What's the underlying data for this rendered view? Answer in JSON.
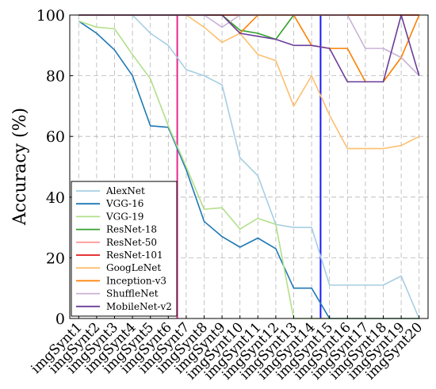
{
  "chart_data": {
    "type": "line",
    "title": "",
    "xlabel": "",
    "ylabel": "Accuracy (%)",
    "ylim": [
      0,
      100
    ],
    "yticks": [
      0,
      20,
      40,
      60,
      80,
      100
    ],
    "grid": true,
    "legend_position": "bottom-left",
    "categories": [
      "imgSynt1",
      "imgSynt2",
      "imgSynt3",
      "imgSynt4",
      "imgSynt5",
      "imgSynt6",
      "imgSynt7",
      "imgSynt8",
      "imgSynt9",
      "imgSynt10",
      "imgSynt11",
      "imgSynt12",
      "imgSynt13",
      "imgSynt14",
      "imgSynt15",
      "imgSynt16",
      "imgSynt17",
      "imgSynt18",
      "imgSynt19",
      "imgSynt20"
    ],
    "series": [
      {
        "name": "AlexNet",
        "color": "#a6cee3",
        "values": [
          100,
          100,
          100,
          100,
          94,
          90,
          82,
          80,
          77,
          53,
          47,
          31,
          30,
          30,
          11,
          11,
          11,
          11,
          14,
          0
        ]
      },
      {
        "name": "VGG-16",
        "color": "#1f78b4",
        "values": [
          98,
          94,
          88.5,
          80,
          63.5,
          63,
          49,
          32,
          27,
          23.5,
          26.5,
          23,
          10,
          10,
          0,
          0,
          0,
          0,
          0,
          0
        ]
      },
      {
        "name": "VGG-19",
        "color": "#b2df8a",
        "values": [
          98,
          96,
          95.5,
          87,
          79,
          63.5,
          50,
          36,
          36.5,
          29.5,
          33,
          31,
          0,
          0,
          0,
          0,
          0,
          0,
          0,
          0
        ]
      },
      {
        "name": "ResNet-18",
        "color": "#33a02c",
        "values": [
          100,
          100,
          100,
          100,
          100,
          100,
          100,
          100,
          100,
          95,
          94,
          92,
          100,
          100,
          100,
          100,
          100,
          100,
          100,
          100
        ]
      },
      {
        "name": "ResNet-50",
        "color": "#fb9a99",
        "values": [
          100,
          100,
          100,
          100,
          100,
          100,
          100,
          100,
          100,
          100,
          100,
          100,
          100,
          100,
          100,
          100,
          100,
          100,
          100,
          100
        ]
      },
      {
        "name": "ResNet-101",
        "color": "#e31a1c",
        "values": [
          100,
          100,
          100,
          100,
          100,
          100,
          100,
          100,
          100,
          100,
          100,
          100,
          100,
          100,
          100,
          100,
          100,
          100,
          100,
          100
        ]
      },
      {
        "name": "GoogLeNet",
        "color": "#fdbf6f",
        "values": [
          100,
          100,
          100,
          100,
          100,
          100,
          100,
          96,
          91,
          94,
          87,
          85,
          70,
          80,
          67,
          56,
          56,
          56,
          57,
          60
        ]
      },
      {
        "name": "Inception-v3",
        "color": "#ff7f00",
        "values": [
          100,
          100,
          100,
          100,
          100,
          100,
          100,
          100,
          100,
          94,
          100,
          100,
          100,
          90,
          89,
          89,
          78,
          78,
          86,
          100
        ]
      },
      {
        "name": "ShuffleNet",
        "color": "#cab2d6",
        "values": [
          100,
          100,
          100,
          100,
          100,
          100,
          100,
          100,
          96,
          100,
          100,
          100,
          100,
          100,
          100,
          100,
          89,
          89,
          86,
          80
        ]
      },
      {
        "name": "MobileNet-v2",
        "color": "#6a3d9a",
        "values": [
          100,
          100,
          100,
          100,
          100,
          100,
          100,
          100,
          100,
          94,
          93,
          92,
          90,
          90,
          89,
          78,
          78,
          78,
          100,
          80
        ]
      }
    ],
    "markers": [
      {
        "x": 6.5,
        "color": "#e7298a"
      },
      {
        "x": 14.5,
        "color": "#1a1aff"
      }
    ]
  }
}
